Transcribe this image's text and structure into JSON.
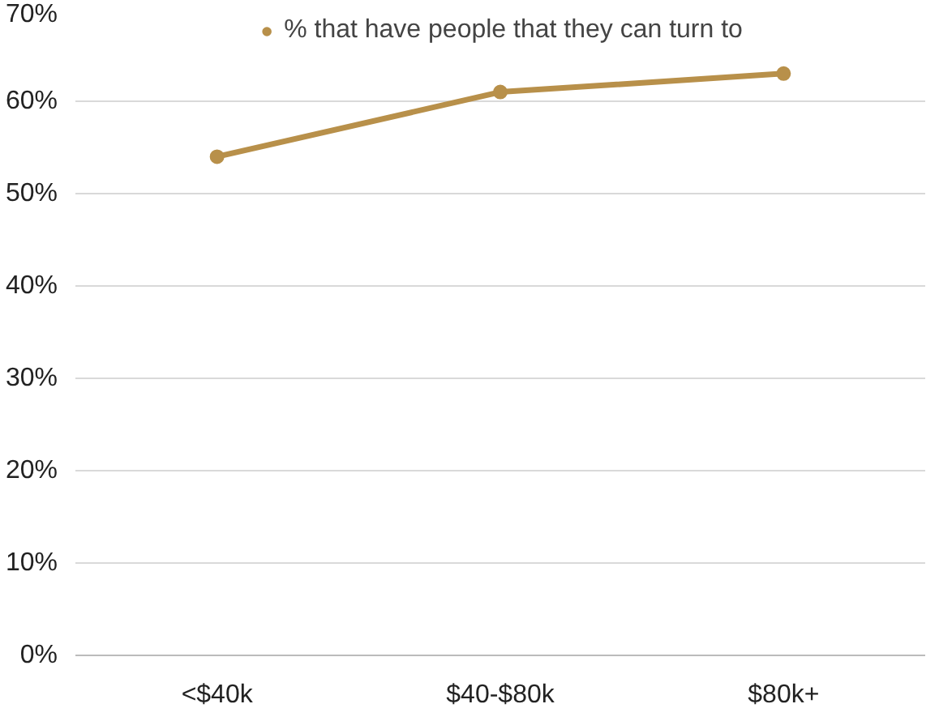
{
  "chart_data": {
    "type": "line",
    "categories": [
      "<$40k",
      "$40-$80k",
      "$80k+"
    ],
    "series": [
      {
        "name": "% that have people that they can turn to",
        "color": "#b8904a",
        "values": [
          54,
          61,
          63
        ]
      }
    ],
    "ylim": [
      0,
      70
    ],
    "yticks": [
      {
        "value": 0,
        "label": "0%"
      },
      {
        "value": 10,
        "label": "10%"
      },
      {
        "value": 20,
        "label": "20%"
      },
      {
        "value": 30,
        "label": "30%"
      },
      {
        "value": 40,
        "label": "40%"
      },
      {
        "value": 50,
        "label": "50%"
      },
      {
        "value": 60,
        "label": "60%"
      },
      {
        "value": 70,
        "label": "70%"
      }
    ],
    "grid": "y",
    "legend": "top",
    "marker": "circle",
    "line_style": "solid"
  }
}
